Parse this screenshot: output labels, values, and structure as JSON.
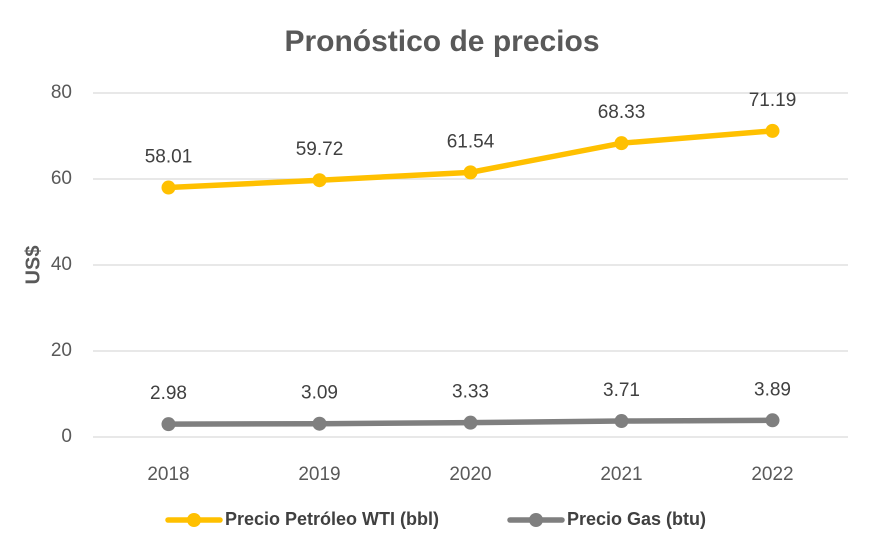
{
  "chart_data": {
    "type": "line",
    "title": "Pronóstico de precios",
    "xlabel": "",
    "ylabel": "US$",
    "ylim": [
      0,
      80
    ],
    "yticks": [
      0,
      20,
      40,
      60,
      80
    ],
    "grid": true,
    "legend_position": "bottom",
    "categories": [
      "2018",
      "2019",
      "2020",
      "2021",
      "2022"
    ],
    "series": [
      {
        "name": "Precio Petróleo WTI (bbl)",
        "color": "#FFC000",
        "values": [
          58.01,
          59.72,
          61.54,
          68.33,
          71.19
        ],
        "labels": [
          "58.01",
          "59.72",
          "61.54",
          "68.33",
          "71.19"
        ]
      },
      {
        "name": "Precio Gas (btu)",
        "color": "#7F7F7F",
        "values": [
          2.98,
          3.09,
          3.33,
          3.71,
          3.89
        ],
        "labels": [
          "2.98",
          "3.09",
          "3.33",
          "3.71",
          "3.89"
        ]
      }
    ]
  }
}
